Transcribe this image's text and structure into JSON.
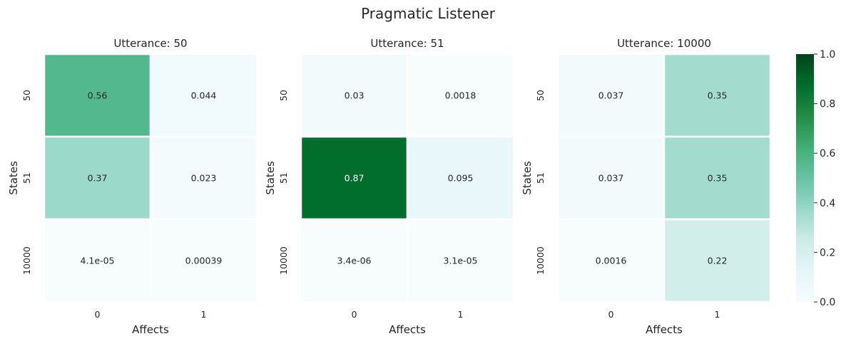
{
  "chart_data": {
    "type": "heatmap",
    "title": "Pragmatic Listener",
    "colormap": "BuGn",
    "colors": {
      "low": "#f7fcfd",
      "high": "#00441b"
    },
    "panels": [
      {
        "title": "Utterance: 50",
        "xlabel": "Affects",
        "ylabel": "States",
        "x_ticks": [
          "0",
          "1"
        ],
        "y_ticks": [
          "50",
          "51",
          "10000"
        ],
        "values": [
          [
            0.56,
            0.044
          ],
          [
            0.37,
            0.023
          ],
          [
            4.1e-05,
            0.00039
          ]
        ],
        "labels": [
          [
            "0.56",
            "0.044"
          ],
          [
            "0.37",
            "0.023"
          ],
          [
            "4.1e-05",
            "0.00039"
          ]
        ]
      },
      {
        "title": "Utterance: 51",
        "xlabel": "Affects",
        "ylabel": "States",
        "x_ticks": [
          "0",
          "1"
        ],
        "y_ticks": [
          "50",
          "51",
          "10000"
        ],
        "values": [
          [
            0.03,
            0.0018
          ],
          [
            0.87,
            0.095
          ],
          [
            3.4e-06,
            3.1e-05
          ]
        ],
        "labels": [
          [
            "0.03",
            "0.0018"
          ],
          [
            "0.87",
            "0.095"
          ],
          [
            "3.4e-06",
            "3.1e-05"
          ]
        ]
      },
      {
        "title": "Utterance: 10000",
        "xlabel": "Affects",
        "ylabel": "States",
        "x_ticks": [
          "0",
          "1"
        ],
        "y_ticks": [
          "50",
          "51",
          "10000"
        ],
        "values": [
          [
            0.037,
            0.35
          ],
          [
            0.037,
            0.35
          ],
          [
            0.0016,
            0.22
          ]
        ],
        "labels": [
          [
            "0.037",
            "0.35"
          ],
          [
            "0.037",
            "0.35"
          ],
          [
            "0.0016",
            "0.22"
          ]
        ]
      }
    ],
    "colorbar": {
      "range": [
        0.0,
        1.0
      ],
      "ticks": [
        "0.0",
        "0.2",
        "0.4",
        "0.6",
        "0.8",
        "1.0"
      ]
    }
  }
}
